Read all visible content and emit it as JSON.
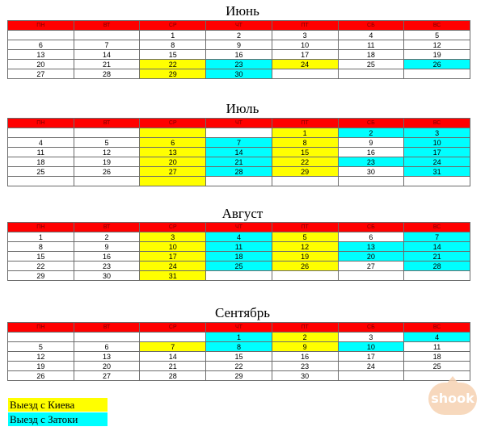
{
  "colors": {
    "header": "#ff0000",
    "kiev": "#ffff00",
    "zatoka": "#00ffff"
  },
  "months": [
    {
      "title": "Июнь",
      "headers": [
        "ПН",
        "ВТ",
        "СР",
        "ЧТ",
        "ПТ",
        "СБ",
        "ВС"
      ],
      "rows": [
        [
          "",
          "",
          "1",
          "2",
          "3",
          "4",
          "5"
        ],
        [
          "6",
          "7",
          "8",
          "9",
          "10",
          "11",
          "12"
        ],
        [
          "13",
          "14",
          "15",
          "16",
          "17",
          "18",
          "19"
        ],
        [
          "20",
          "21",
          "22",
          "23",
          "24",
          "25",
          "26"
        ],
        [
          "27",
          "28",
          "29",
          "30",
          "",
          "",
          ""
        ]
      ],
      "colors": [
        [
          "",
          "",
          "",
          "",
          "",
          "",
          ""
        ],
        [
          "",
          "",
          "",
          "",
          "",
          "",
          ""
        ],
        [
          "",
          "",
          "",
          "",
          "",
          "",
          ""
        ],
        [
          "",
          "",
          "y",
          "c",
          "y",
          "",
          "c"
        ],
        [
          "",
          "",
          "y",
          "c",
          "",
          "",
          ""
        ]
      ]
    },
    {
      "title": "Июль",
      "headers": [
        "ПН",
        "ВТ",
        "СР",
        "ЧТ",
        "ПТ",
        "СБ",
        "ВС"
      ],
      "rows": [
        [
          "",
          "",
          "",
          "",
          "1",
          "2",
          "3"
        ],
        [
          "4",
          "5",
          "6",
          "7",
          "8",
          "9",
          "10"
        ],
        [
          "11",
          "12",
          "13",
          "14",
          "15",
          "16",
          "17"
        ],
        [
          "18",
          "19",
          "20",
          "21",
          "22",
          "23",
          "24"
        ],
        [
          "25",
          "26",
          "27",
          "28",
          "29",
          "30",
          "31"
        ],
        [
          "",
          "",
          "",
          "",
          "",
          "",
          ""
        ]
      ],
      "colors": [
        [
          "",
          "",
          "y",
          "",
          "y",
          "c",
          "c"
        ],
        [
          "",
          "",
          "y",
          "c",
          "y",
          "",
          "c"
        ],
        [
          "",
          "",
          "y",
          "c",
          "y",
          "",
          "c"
        ],
        [
          "",
          "",
          "y",
          "c",
          "y",
          "c",
          "c"
        ],
        [
          "",
          "",
          "y",
          "c",
          "y",
          "",
          "c"
        ],
        [
          "",
          "",
          "y",
          "",
          "",
          "",
          ""
        ]
      ]
    },
    {
      "title": "Август",
      "headers": [
        "ПН",
        "ВТ",
        "СР",
        "ЧТ",
        "ПТ",
        "СБ",
        "ВС"
      ],
      "rows": [
        [
          "1",
          "2",
          "3",
          "4",
          "5",
          "6",
          "7"
        ],
        [
          "8",
          "9",
          "10",
          "11",
          "12",
          "13",
          "14"
        ],
        [
          "15",
          "16",
          "17",
          "18",
          "19",
          "20",
          "21"
        ],
        [
          "22",
          "23",
          "24",
          "25",
          "26",
          "27",
          "28"
        ],
        [
          "29",
          "30",
          "31",
          "",
          "",
          "",
          ""
        ]
      ],
      "colors": [
        [
          "",
          "",
          "y",
          "c",
          "y",
          "",
          "c"
        ],
        [
          "",
          "",
          "y",
          "c",
          "y",
          "c",
          "c"
        ],
        [
          "",
          "",
          "y",
          "c",
          "y",
          "c",
          "c"
        ],
        [
          "",
          "",
          "y",
          "c",
          "y",
          "",
          "c"
        ],
        [
          "",
          "",
          "y",
          "",
          "",
          "",
          ""
        ]
      ]
    },
    {
      "title": "Сентябрь",
      "headers": [
        "ПН",
        "ВТ",
        "СР",
        "ЧТ",
        "ПТ",
        "СБ",
        "ВС"
      ],
      "rows": [
        [
          "",
          "",
          "",
          "1",
          "2",
          "3",
          "4"
        ],
        [
          "5",
          "6",
          "7",
          "8",
          "9",
          "10",
          "11"
        ],
        [
          "12",
          "13",
          "14",
          "15",
          "16",
          "17",
          "18"
        ],
        [
          "19",
          "20",
          "21",
          "22",
          "23",
          "24",
          "25"
        ],
        [
          "26",
          "27",
          "28",
          "29",
          "30",
          "",
          ""
        ]
      ],
      "colors": [
        [
          "",
          "",
          "",
          "c",
          "y",
          "",
          "c"
        ],
        [
          "",
          "",
          "y",
          "c",
          "y",
          "c",
          ""
        ],
        [
          "",
          "",
          "",
          "",
          "",
          "",
          ""
        ],
        [
          "",
          "",
          "",
          "",
          "",
          "",
          ""
        ],
        [
          "",
          "",
          "",
          "",
          "",
          "",
          ""
        ]
      ]
    }
  ],
  "legend": {
    "kiev": "Выезд с Киева",
    "zatoka": "Выезд с Затоки"
  },
  "watermark": "shook"
}
